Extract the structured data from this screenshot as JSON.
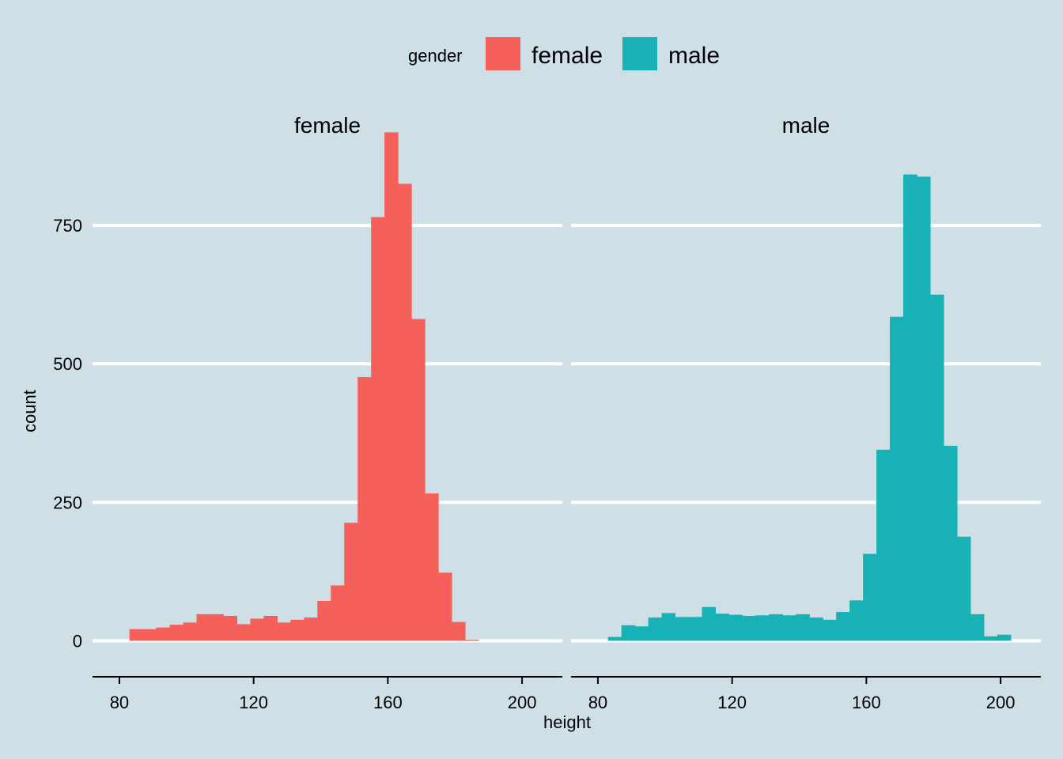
{
  "chart_data": {
    "type": "bar",
    "subtype": "histogram",
    "xlabel": "height",
    "ylabel": "count",
    "x_range": [
      72,
      212
    ],
    "y_range": [
      -45,
      900
    ],
    "x_ticks": [
      80,
      120,
      160,
      200
    ],
    "y_ticks": [
      0,
      250,
      500,
      750
    ],
    "bin_width": 4,
    "grid": "horizontal",
    "legend_position": "top",
    "legend": {
      "title": "gender",
      "items": [
        {
          "label": "female",
          "color": "#f5605b"
        },
        {
          "label": "male",
          "color": "#18b2b6"
        }
      ]
    },
    "facets": [
      {
        "name": "female",
        "color": "#f5605b",
        "bins": [
          {
            "x0": 83,
            "x1": 87,
            "count": 21
          },
          {
            "x0": 87,
            "x1": 91,
            "count": 21
          },
          {
            "x0": 91,
            "x1": 95,
            "count": 24
          },
          {
            "x0": 95,
            "x1": 99,
            "count": 29
          },
          {
            "x0": 99,
            "x1": 103,
            "count": 33
          },
          {
            "x0": 103,
            "x1": 107,
            "count": 48
          },
          {
            "x0": 107,
            "x1": 111,
            "count": 48
          },
          {
            "x0": 111,
            "x1": 115,
            "count": 45
          },
          {
            "x0": 115,
            "x1": 119,
            "count": 30
          },
          {
            "x0": 119,
            "x1": 123,
            "count": 40
          },
          {
            "x0": 123,
            "x1": 127,
            "count": 45
          },
          {
            "x0": 127,
            "x1": 131,
            "count": 33
          },
          {
            "x0": 131,
            "x1": 135,
            "count": 38
          },
          {
            "x0": 135,
            "x1": 139,
            "count": 42
          },
          {
            "x0": 139,
            "x1": 143,
            "count": 72
          },
          {
            "x0": 143,
            "x1": 147,
            "count": 100
          },
          {
            "x0": 147,
            "x1": 151,
            "count": 213
          },
          {
            "x0": 151,
            "x1": 155,
            "count": 476
          },
          {
            "x0": 155,
            "x1": 159,
            "count": 765
          },
          {
            "x0": 159,
            "x1": 163,
            "count": 918
          },
          {
            "x0": 163,
            "x1": 167,
            "count": 825
          },
          {
            "x0": 167,
            "x1": 171,
            "count": 581
          },
          {
            "x0": 171,
            "x1": 175,
            "count": 266
          },
          {
            "x0": 175,
            "x1": 179,
            "count": 123
          },
          {
            "x0": 179,
            "x1": 183,
            "count": 34
          },
          {
            "x0": 183,
            "x1": 187,
            "count": 2
          }
        ]
      },
      {
        "name": "male",
        "color": "#18b2b6",
        "bins": [
          {
            "x0": 83,
            "x1": 87,
            "count": 7
          },
          {
            "x0": 87,
            "x1": 91,
            "count": 28
          },
          {
            "x0": 91,
            "x1": 95,
            "count": 26
          },
          {
            "x0": 95,
            "x1": 99,
            "count": 42
          },
          {
            "x0": 99,
            "x1": 103,
            "count": 50
          },
          {
            "x0": 103,
            "x1": 107,
            "count": 43
          },
          {
            "x0": 107,
            "x1": 111,
            "count": 43
          },
          {
            "x0": 111,
            "x1": 115,
            "count": 61
          },
          {
            "x0": 115,
            "x1": 119,
            "count": 49
          },
          {
            "x0": 119,
            "x1": 123,
            "count": 47
          },
          {
            "x0": 123,
            "x1": 127,
            "count": 45
          },
          {
            "x0": 127,
            "x1": 131,
            "count": 46
          },
          {
            "x0": 131,
            "x1": 135,
            "count": 48
          },
          {
            "x0": 135,
            "x1": 139,
            "count": 46
          },
          {
            "x0": 139,
            "x1": 143,
            "count": 48
          },
          {
            "x0": 143,
            "x1": 147,
            "count": 42
          },
          {
            "x0": 147,
            "x1": 151,
            "count": 38
          },
          {
            "x0": 151,
            "x1": 155,
            "count": 52
          },
          {
            "x0": 155,
            "x1": 159,
            "count": 73
          },
          {
            "x0": 159,
            "x1": 163,
            "count": 157
          },
          {
            "x0": 163,
            "x1": 167,
            "count": 345
          },
          {
            "x0": 167,
            "x1": 171,
            "count": 585
          },
          {
            "x0": 171,
            "x1": 175,
            "count": 842
          },
          {
            "x0": 175,
            "x1": 179,
            "count": 838
          },
          {
            "x0": 179,
            "x1": 183,
            "count": 625
          },
          {
            "x0": 183,
            "x1": 187,
            "count": 352
          },
          {
            "x0": 187,
            "x1": 191,
            "count": 188
          },
          {
            "x0": 191,
            "x1": 195,
            "count": 48
          },
          {
            "x0": 195,
            "x1": 199,
            "count": 8
          },
          {
            "x0": 199,
            "x1": 203,
            "count": 11
          }
        ]
      }
    ]
  }
}
